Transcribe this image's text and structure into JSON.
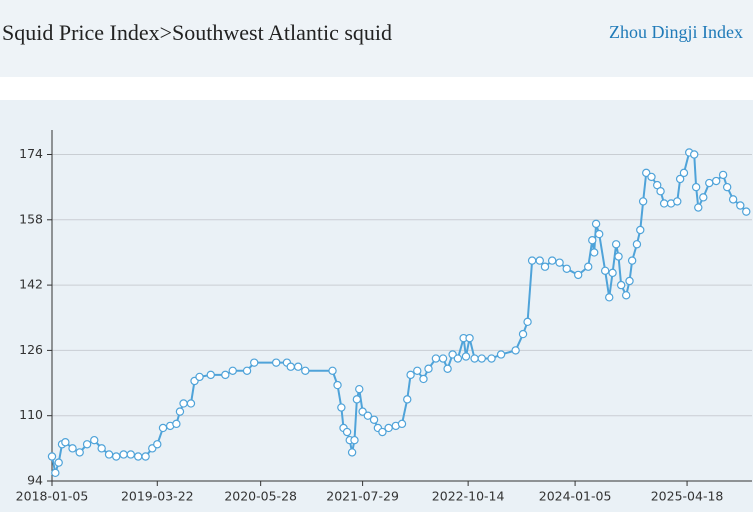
{
  "header": {
    "title": "Squid Price Index>Southwest Atlantic squid",
    "brand": "Zhou Dingji Index"
  },
  "chart_data": {
    "type": "line",
    "color": "#4fa3d9",
    "grid": true,
    "xlim": [
      "2018-01-05",
      "2026-01-15"
    ],
    "xticks": [
      "2018-01-05",
      "2019-03-22",
      "2020-05-28",
      "2021-07-29",
      "2022-10-14",
      "2024-01-05",
      "2025-04-18"
    ],
    "ylim": [
      94,
      180
    ],
    "yticks": [
      94,
      110,
      126,
      142,
      158,
      174
    ],
    "x": [
      "2018-01-05",
      "2018-01-19",
      "2018-02-02",
      "2018-02-16",
      "2018-03-02",
      "2018-04-01",
      "2018-05-01",
      "2018-06-01",
      "2018-07-01",
      "2018-08-01",
      "2018-09-01",
      "2018-10-01",
      "2018-11-01",
      "2018-12-01",
      "2019-01-01",
      "2019-02-01",
      "2019-03-01",
      "2019-03-22",
      "2019-04-15",
      "2019-05-15",
      "2019-06-10",
      "2019-06-25",
      "2019-07-10",
      "2019-08-10",
      "2019-08-25",
      "2019-09-15",
      "2019-11-01",
      "2020-01-01",
      "2020-02-01",
      "2020-04-01",
      "2020-05-01",
      "2020-08-01",
      "2020-09-15",
      "2020-10-01",
      "2020-11-01",
      "2020-12-01",
      "2021-03-25",
      "2021-04-15",
      "2021-05-01",
      "2021-05-10",
      "2021-05-25",
      "2021-06-05",
      "2021-06-15",
      "2021-06-25",
      "2021-07-05",
      "2021-07-15",
      "2021-07-29",
      "2021-08-20",
      "2021-09-15",
      "2021-10-01",
      "2021-10-20",
      "2021-11-15",
      "2021-12-15",
      "2022-01-10",
      "2022-02-01",
      "2022-02-15",
      "2022-03-15",
      "2022-04-10",
      "2022-05-01",
      "2022-06-01",
      "2022-07-01",
      "2022-07-20",
      "2022-08-10",
      "2022-09-01",
      "2022-09-25",
      "2022-10-05",
      "2022-10-20",
      "2022-11-10",
      "2022-12-10",
      "2023-01-20",
      "2023-03-01",
      "2023-05-01",
      "2023-06-01",
      "2023-06-20",
      "2023-07-09",
      "2023-08-10",
      "2023-09-01",
      "2023-10-01",
      "2023-11-01",
      "2023-12-01",
      "2024-01-18",
      "2024-02-29",
      "2024-03-17",
      "2024-03-25",
      "2024-04-02",
      "2024-04-15",
      "2024-05-10",
      "2024-05-27",
      "2024-06-10",
      "2024-06-25",
      "2024-07-05",
      "2024-07-16",
      "2024-08-06",
      "2024-08-20",
      "2024-08-31",
      "2024-09-20",
      "2024-10-04",
      "2024-10-16",
      "2024-10-29",
      "2024-11-20",
      "2024-12-14",
      "2024-12-28",
      "2025-01-12",
      "2025-02-10",
      "2025-03-08",
      "2025-03-20",
      "2025-04-05",
      "2025-04-27",
      "2025-05-18",
      "2025-05-26",
      "2025-06-04",
      "2025-06-25",
      "2025-07-20",
      "2025-08-18",
      "2025-09-16",
      "2025-10-03",
      "2025-10-28",
      "2025-11-27",
      "2025-12-22"
    ],
    "values": [
      100,
      96,
      98.5,
      103,
      103.5,
      102,
      101,
      103,
      104,
      102,
      100.5,
      100,
      100.5,
      100.5,
      100,
      100,
      102,
      103,
      107,
      107.5,
      108,
      111,
      113,
      113,
      118.5,
      119.5,
      120,
      120,
      121,
      121,
      123,
      123,
      123,
      122,
      122,
      121,
      121,
      117.5,
      112,
      107,
      106,
      104,
      101,
      104,
      114,
      116.5,
      111,
      110,
      109,
      107,
      106,
      107,
      107.5,
      108,
      114,
      120,
      121,
      119,
      121.5,
      124,
      124,
      121.5,
      125,
      124,
      129,
      124.5,
      129,
      124,
      124,
      124,
      125,
      126,
      130,
      133,
      148,
      148,
      146.5,
      148,
      147.5,
      146,
      144.5,
      146.5,
      153,
      150,
      157,
      154.5,
      145.5,
      139,
      145,
      152,
      149,
      142,
      139.5,
      143,
      148,
      152,
      155.5,
      162.5,
      169.5,
      168.5,
      166.5,
      165,
      162,
      162,
      162.5,
      168,
      169.5,
      174.5,
      174,
      166,
      161,
      163.5,
      167,
      167.5,
      169,
      166,
      163,
      161.5,
      160
    ]
  }
}
